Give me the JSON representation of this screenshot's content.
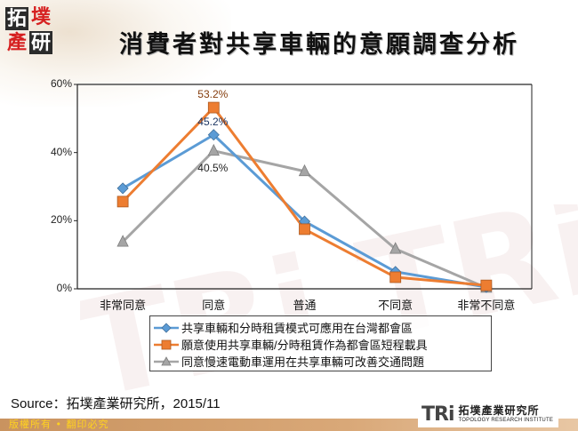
{
  "header": {
    "logo_chars": [
      "拓",
      "墣",
      "產",
      "研"
    ],
    "title": "消費者對共享車輛的意願調查分析"
  },
  "chart_data": {
    "type": "line",
    "title": "消費者對共享車輛的意願調查分析",
    "xlabel": "",
    "ylabel": "",
    "ylim": [
      0,
      60
    ],
    "yticks": [
      "0%",
      "20%",
      "40%",
      "60%"
    ],
    "grid": false,
    "legend_position": "bottom",
    "categories": [
      "非常同意",
      "同意",
      "普通",
      "不同意",
      "非常不同意"
    ],
    "series": [
      {
        "name": "共享車輛和分時租賃模式可應用在台灣都會區",
        "color": "#5B9BD5",
        "marker": "diamond",
        "values": [
          29.5,
          45.2,
          19.8,
          5.0,
          0.5
        ]
      },
      {
        "name": "願意使用共享車輛/分時租賃作為都會區短程載具",
        "color": "#ED7D31",
        "marker": "square",
        "values": [
          25.6,
          53.2,
          17.5,
          3.4,
          1.0
        ]
      },
      {
        "name": "同意慢速電動車運用在共享車輛可改善交通問題",
        "color": "#A5A5A5",
        "marker": "triangle",
        "values": [
          13.8,
          40.5,
          34.5,
          11.7,
          0.3
        ]
      }
    ],
    "annotations": [
      {
        "text": "53.2%",
        "series": 1,
        "category": "同意",
        "color": "#843C0C"
      },
      {
        "text": "45.2%",
        "series": 0,
        "category": "同意",
        "color": "#1F3864"
      },
      {
        "text": "40.5%",
        "series": 2,
        "category": "同意",
        "color": "#222222"
      }
    ]
  },
  "footer": {
    "source": "Source：拓墣產業研究所，2015/11",
    "copyright": "版權所有 • 翻印必究",
    "brand_mark": "TRi",
    "brand_cn": "拓墣產業研究所",
    "brand_en": "TOPOLOGY RESEARCH INSTITUTE"
  }
}
